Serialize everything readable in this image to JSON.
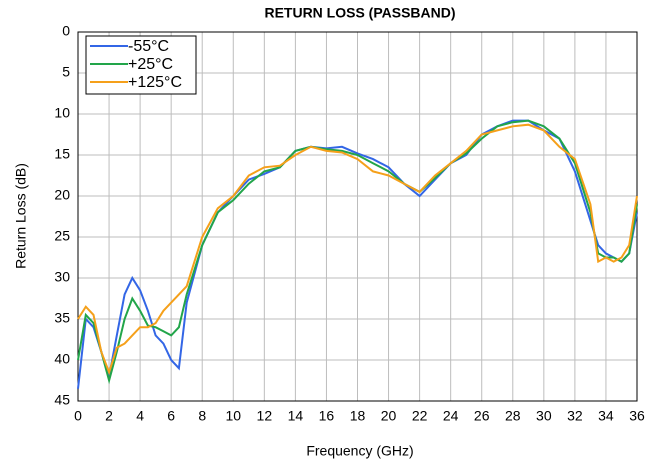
{
  "chart_data": {
    "type": "line",
    "title": "RETURN LOSS (PASSBAND)",
    "x_label": "Frequency (GHz)",
    "y_label": "Return Loss (dB)",
    "x": [
      0,
      0.5,
      1,
      1.5,
      2,
      2.5,
      3,
      3.5,
      4,
      4.5,
      5,
      5.5,
      6,
      6.5,
      7,
      8,
      9,
      10,
      11,
      12,
      13,
      14,
      15,
      16,
      17,
      18,
      19,
      20,
      21,
      22,
      23,
      24,
      25,
      26,
      27,
      28,
      29,
      30,
      31,
      32,
      33,
      33.5,
      34,
      34.5,
      35,
      35.5,
      36
    ],
    "series": [
      {
        "name": "-55°C",
        "color": "#3366e6",
        "values": [
          43.5,
          35,
          36,
          39,
          42,
          37,
          32,
          30,
          31.5,
          34,
          37,
          38,
          40,
          41,
          33,
          26,
          22,
          20,
          18,
          17.3,
          16.5,
          14.5,
          14,
          14.2,
          14,
          14.8,
          15.5,
          16.5,
          18.5,
          20,
          18,
          16,
          15,
          12.5,
          11.5,
          10.8,
          10.8,
          12,
          13,
          17,
          23,
          26,
          27,
          27.5,
          28,
          27,
          22
        ]
      },
      {
        "name": "+25°C",
        "color": "#22a54a",
        "values": [
          40,
          34.5,
          35.5,
          39,
          42.5,
          39,
          35,
          32.5,
          34,
          35.8,
          36,
          36.5,
          37,
          36,
          32,
          26,
          22,
          20.5,
          18.5,
          17,
          16.5,
          14.5,
          14,
          14.3,
          14.5,
          15,
          16,
          17,
          18.5,
          19.5,
          17.8,
          16,
          14.8,
          13,
          11.5,
          11,
          10.8,
          11.5,
          13,
          16,
          22,
          27,
          27.5,
          27.5,
          28,
          27,
          21
        ]
      },
      {
        "name": "+125°C",
        "color": "#f5a01a",
        "values": [
          35,
          33.5,
          34.5,
          39,
          41.5,
          38.5,
          38,
          37,
          36,
          36,
          35.5,
          34,
          33,
          32,
          31,
          25,
          21.5,
          20,
          17.5,
          16.5,
          16.3,
          15,
          14,
          14.5,
          14.7,
          15.5,
          17,
          17.5,
          18.5,
          19.5,
          17.5,
          16,
          14.5,
          12.5,
          12,
          11.5,
          11.3,
          12,
          14,
          15.5,
          21,
          28,
          27.5,
          28,
          27.5,
          26,
          20
        ]
      }
    ],
    "xlim": [
      0,
      36
    ],
    "xticks": [
      0,
      2,
      4,
      6,
      8,
      10,
      12,
      14,
      16,
      18,
      20,
      22,
      24,
      26,
      28,
      30,
      32,
      34,
      36
    ],
    "ylim": [
      0,
      45
    ],
    "yticks": [
      0,
      5,
      10,
      15,
      20,
      25,
      30,
      35,
      40,
      45
    ],
    "y_inverted": true,
    "grid": true,
    "legend": "top-left"
  }
}
